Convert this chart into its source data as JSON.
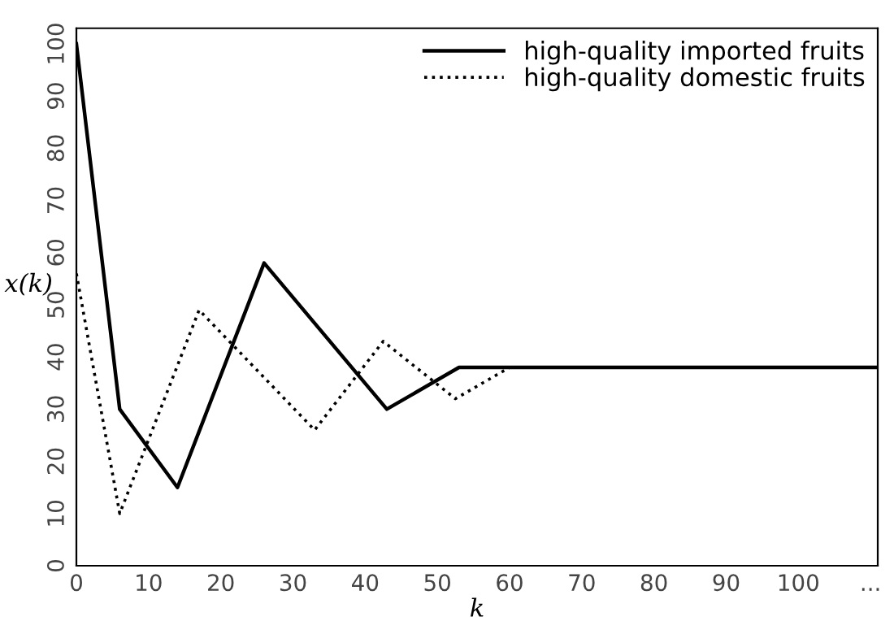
{
  "chart_data": {
    "type": "line",
    "xlabel": "k",
    "ylabel": "x(k)",
    "xlim": [
      0,
      111
    ],
    "ylim": [
      0,
      103
    ],
    "xticks": [
      0,
      10,
      20,
      30,
      40,
      50,
      60,
      70,
      80,
      90,
      100,
      {
        "value": 110,
        "label": "..."
      }
    ],
    "yticks": [
      0,
      10,
      20,
      30,
      40,
      50,
      60,
      70,
      80,
      90,
      100
    ],
    "legend": "top right",
    "grid": false,
    "marker": "none",
    "series": [
      {
        "name": "high-quality imported fruits",
        "color": "#000000",
        "line_style": "solid",
        "x": [
          0,
          6,
          14,
          26,
          43,
          53,
          111
        ],
        "values": [
          100,
          30,
          15,
          58,
          30,
          38,
          38
        ]
      },
      {
        "name": "high-quality domestic fruits",
        "color": "#000000",
        "line_style": "dotted",
        "x": [
          0,
          6,
          17,
          33,
          42.5,
          52.5,
          60
        ],
        "values": [
          56,
          10,
          49,
          26,
          43,
          32,
          38
        ]
      }
    ]
  }
}
